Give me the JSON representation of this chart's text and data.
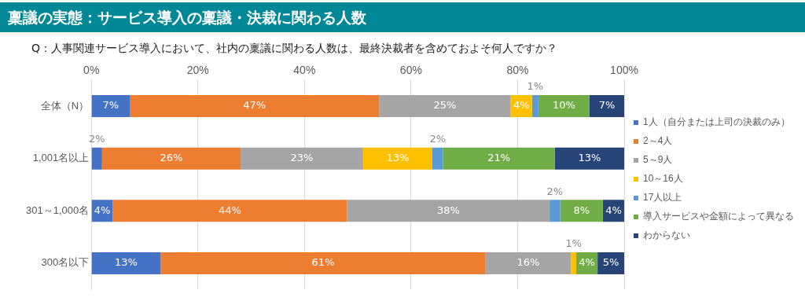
{
  "chart_data": {
    "type": "bar",
    "orientation": "horizontal",
    "stacked": true,
    "title": "稟議の実態：サービス導入の稟議・決裁に関わる人数",
    "subtitle": "Q：人事関連サービス導入において、社内の稟議に関わる人数は、最終決裁者を含めておよそ何人ですか？",
    "categories": [
      "全体（N）",
      "1,001名以上",
      "301～1,000名",
      "300名以下"
    ],
    "xlim": [
      0,
      100
    ],
    "xticks": [
      {
        "value": 0,
        "label": "0%"
      },
      {
        "value": 20,
        "label": "20%"
      },
      {
        "value": 40,
        "label": "40%"
      },
      {
        "value": 60,
        "label": "60%"
      },
      {
        "value": 80,
        "label": "80%"
      },
      {
        "value": 100,
        "label": "100%"
      }
    ],
    "grid": "x",
    "legend": "right",
    "series": [
      {
        "name": "1人（自分または上司の決裁のみ）",
        "color": "#4472c4",
        "values": [
          7.2,
          2,
          4,
          13
        ],
        "value_labels": [
          "7%",
          "2%",
          "4%",
          "13%"
        ]
      },
      {
        "name": "2～4人",
        "color": "#ed7d31",
        "values": [
          46.8,
          26,
          44,
          61
        ],
        "value_labels": [
          "47%",
          "26%",
          "44%",
          "61%"
        ]
      },
      {
        "name": "5～9人",
        "color": "#a5a5a5",
        "values": [
          24.7,
          23,
          38,
          16
        ],
        "value_labels": [
          "25%",
          "23%",
          "38%",
          "16%"
        ]
      },
      {
        "name": "10～16人",
        "color": "#ffc000",
        "values": [
          4,
          13,
          0,
          1
        ],
        "value_labels": [
          "4%",
          "13%",
          null,
          "1%"
        ]
      },
      {
        "name": "17人以上",
        "color": "#5b9bd5",
        "values": [
          1.2,
          2,
          2,
          0
        ],
        "value_labels": [
          "1%",
          "2%",
          "2%",
          null
        ]
      },
      {
        "name": "導入サービスや金額によって異なる",
        "color": "#70ad47",
        "values": [
          9.6,
          21,
          8,
          4
        ],
        "value_labels": [
          "10%",
          "21%",
          "8%",
          "4%"
        ]
      },
      {
        "name": "わからない",
        "color": "#264478",
        "values": [
          6.5,
          13,
          4,
          5
        ],
        "value_labels": [
          "7%",
          "13%",
          "4%",
          "5%"
        ]
      }
    ]
  }
}
